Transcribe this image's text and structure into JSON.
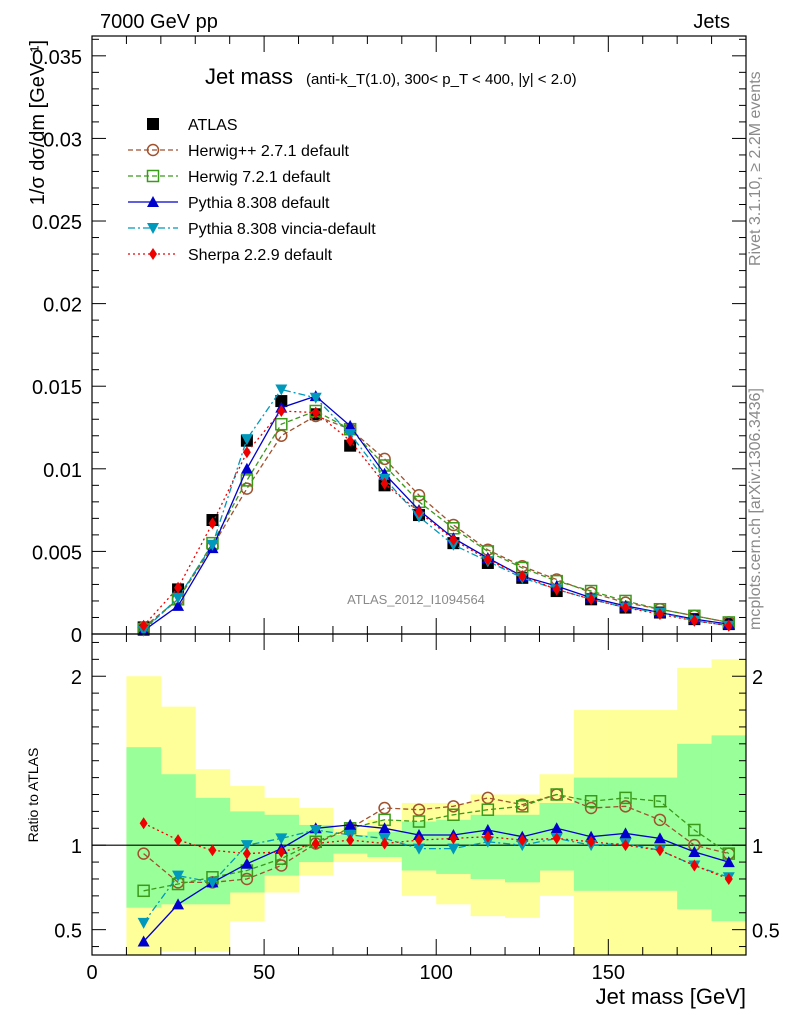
{
  "header": {
    "left": "7000 GeV pp",
    "right": "Jets"
  },
  "side_labels": {
    "rivet": "Rivet 3.1.10, ≥ 2.2M events",
    "mcplots": "mcplots.cern.ch [arXiv:1306.3436]"
  },
  "chart_data": [
    {
      "type": "line",
      "title": "Jet mass",
      "subtitle": "(anti-k_T(1.0), 300< p_T < 400, |y| < 2.0)",
      "ylabel": "1/σ dσ/dm [GeV⁻¹]",
      "watermark": "ATLAS_2012_I1094564",
      "xlim": [
        0,
        190
      ],
      "ylim": [
        0,
        0.0362
      ],
      "yticks": [
        "0",
        "0.005",
        "0.01",
        "0.015",
        "0.02",
        "0.025",
        "0.03",
        "0.035"
      ],
      "ytick_values": [
        0,
        0.005,
        0.01,
        0.015,
        0.02,
        0.025,
        0.03,
        0.035
      ],
      "x": [
        15,
        25,
        35,
        45,
        55,
        65,
        75,
        85,
        95,
        105,
        115,
        125,
        135,
        145,
        155,
        165,
        175,
        185
      ],
      "legend_position": "top-left",
      "series": [
        {
          "name": "ATLAS",
          "color": "#000000",
          "marker": "square-filled",
          "line": "none",
          "values": [
            0.0004,
            0.0027,
            0.0069,
            0.0117,
            0.0141,
            0.0133,
            0.0114,
            0.009,
            0.0072,
            0.0055,
            0.0043,
            0.0034,
            0.0026,
            0.0021,
            0.0016,
            0.0013,
            0.0009,
            0.0006
          ]
        },
        {
          "name": "Herwig++ 2.7.1 default",
          "color": "#a0522d",
          "marker": "circle-open",
          "line": "dashed",
          "values": [
            0.0004,
            0.0021,
            0.0053,
            0.0088,
            0.012,
            0.0132,
            0.0124,
            0.0106,
            0.0084,
            0.0066,
            0.0051,
            0.0041,
            0.0033,
            0.0025,
            0.0019,
            0.0015,
            0.0011,
            0.0007
          ]
        },
        {
          "name": "Herwig 7.2.1 default",
          "color": "#3a9a1a",
          "marker": "square-open",
          "line": "dashed",
          "values": [
            0.0003,
            0.0021,
            0.0055,
            0.0093,
            0.0127,
            0.0135,
            0.0124,
            0.0102,
            0.008,
            0.0064,
            0.005,
            0.004,
            0.0032,
            0.0026,
            0.002,
            0.0015,
            0.0011,
            0.0007
          ]
        },
        {
          "name": "Pythia 8.308 default",
          "color": "#0000cc",
          "marker": "triangle-up",
          "line": "solid",
          "values": [
            0.0002,
            0.0017,
            0.0052,
            0.01,
            0.0137,
            0.0144,
            0.0126,
            0.0097,
            0.0075,
            0.0058,
            0.0046,
            0.0035,
            0.0029,
            0.0022,
            0.0017,
            0.0013,
            0.0009,
            0.0006
          ]
        },
        {
          "name": "Pythia 8.308 vincia-default",
          "color": "#0099bb",
          "marker": "triangle-down",
          "line": "dashdot",
          "values": [
            0.0002,
            0.0022,
            0.0054,
            0.0118,
            0.0148,
            0.0143,
            0.0121,
            0.0094,
            0.0071,
            0.0054,
            0.0044,
            0.0034,
            0.0027,
            0.0021,
            0.0016,
            0.0013,
            0.0008,
            0.0005
          ]
        },
        {
          "name": "Sherpa 2.2.9 default",
          "color": "#ee0000",
          "marker": "diamond",
          "line": "dotted",
          "values": [
            0.0005,
            0.0028,
            0.0067,
            0.011,
            0.0135,
            0.0134,
            0.0117,
            0.0091,
            0.0074,
            0.0057,
            0.0045,
            0.0035,
            0.0027,
            0.0021,
            0.0016,
            0.0012,
            0.0008,
            0.0005
          ]
        }
      ]
    },
    {
      "type": "line",
      "xlabel": "Jet mass [GeV]",
      "ylabel": "Ratio to ATLAS",
      "xlim": [
        0,
        190
      ],
      "ylim": [
        0.35,
        2.25
      ],
      "xticks": [
        "0",
        "50",
        "100",
        "150"
      ],
      "xtick_values": [
        0,
        50,
        100,
        150
      ],
      "yticks": [
        "0.5",
        "1",
        "2"
      ],
      "ytick_values": [
        0.5,
        1,
        2
      ],
      "x": [
        15,
        25,
        35,
        45,
        55,
        65,
        75,
        85,
        95,
        105,
        115,
        125,
        135,
        145,
        155,
        165,
        175,
        185
      ],
      "bands": {
        "bin_edges": [
          10,
          20,
          30,
          40,
          50,
          60,
          70,
          80,
          90,
          100,
          110,
          120,
          130,
          140,
          150,
          160,
          170,
          180,
          190
        ],
        "yellow_low": [
          0.35,
          0.37,
          0.37,
          0.55,
          0.72,
          0.82,
          0.9,
          0.9,
          0.7,
          0.65,
          0.58,
          0.57,
          0.7,
          0.35,
          0.35,
          0.35,
          0.35,
          0.35
        ],
        "yellow_high": [
          2.0,
          1.82,
          1.45,
          1.35,
          1.28,
          1.22,
          1.1,
          1.15,
          1.25,
          1.25,
          1.3,
          1.3,
          1.42,
          1.8,
          1.8,
          1.8,
          2.05,
          2.1
        ],
        "green_low": [
          0.63,
          0.65,
          0.65,
          0.72,
          0.82,
          0.9,
          0.95,
          0.93,
          0.85,
          0.83,
          0.8,
          0.78,
          0.85,
          0.73,
          0.73,
          0.73,
          0.62,
          0.55
        ],
        "green_high": [
          1.58,
          1.42,
          1.28,
          1.2,
          1.18,
          1.12,
          1.06,
          1.08,
          1.14,
          1.15,
          1.18,
          1.18,
          1.25,
          1.4,
          1.4,
          1.4,
          1.6,
          1.65
        ]
      },
      "series": [
        {
          "name": "Herwig++ 2.7.1 default",
          "color": "#a0522d",
          "marker": "circle-open",
          "line": "dashed",
          "values": [
            0.95,
            0.78,
            0.78,
            0.8,
            0.88,
            1.01,
            1.1,
            1.22,
            1.21,
            1.23,
            1.28,
            1.24,
            1.3,
            1.22,
            1.23,
            1.15,
            1.0,
            0.95
          ]
        },
        {
          "name": "Herwig 7.2.1 default",
          "color": "#3a9a1a",
          "marker": "square-open",
          "line": "dashed",
          "values": [
            0.73,
            0.77,
            0.81,
            0.85,
            0.92,
            1.02,
            1.1,
            1.15,
            1.14,
            1.18,
            1.21,
            1.23,
            1.3,
            1.26,
            1.28,
            1.26,
            1.09,
            0.95
          ]
        },
        {
          "name": "Pythia 8.308 default",
          "color": "#0000cc",
          "marker": "triangle-up",
          "line": "solid",
          "values": [
            0.43,
            0.65,
            0.78,
            0.89,
            0.98,
            1.1,
            1.12,
            1.1,
            1.06,
            1.06,
            1.09,
            1.05,
            1.1,
            1.05,
            1.07,
            1.04,
            0.96,
            0.9
          ]
        },
        {
          "name": "Pythia 8.308 vincia-default",
          "color": "#0099bb",
          "marker": "triangle-down",
          "line": "dashdot",
          "values": [
            0.54,
            0.82,
            0.78,
            1.0,
            1.04,
            1.09,
            1.06,
            1.04,
            0.98,
            0.98,
            1.02,
            1.0,
            1.04,
            1.0,
            1.01,
            0.97,
            0.88,
            0.81
          ]
        },
        {
          "name": "Sherpa 2.2.9 default",
          "color": "#ee0000",
          "marker": "diamond",
          "line": "dotted",
          "values": [
            1.13,
            1.03,
            0.97,
            0.95,
            0.96,
            1.01,
            1.03,
            1.01,
            1.03,
            1.04,
            1.05,
            1.03,
            1.04,
            1.02,
            1.0,
            0.97,
            0.88,
            0.8
          ]
        }
      ]
    }
  ]
}
